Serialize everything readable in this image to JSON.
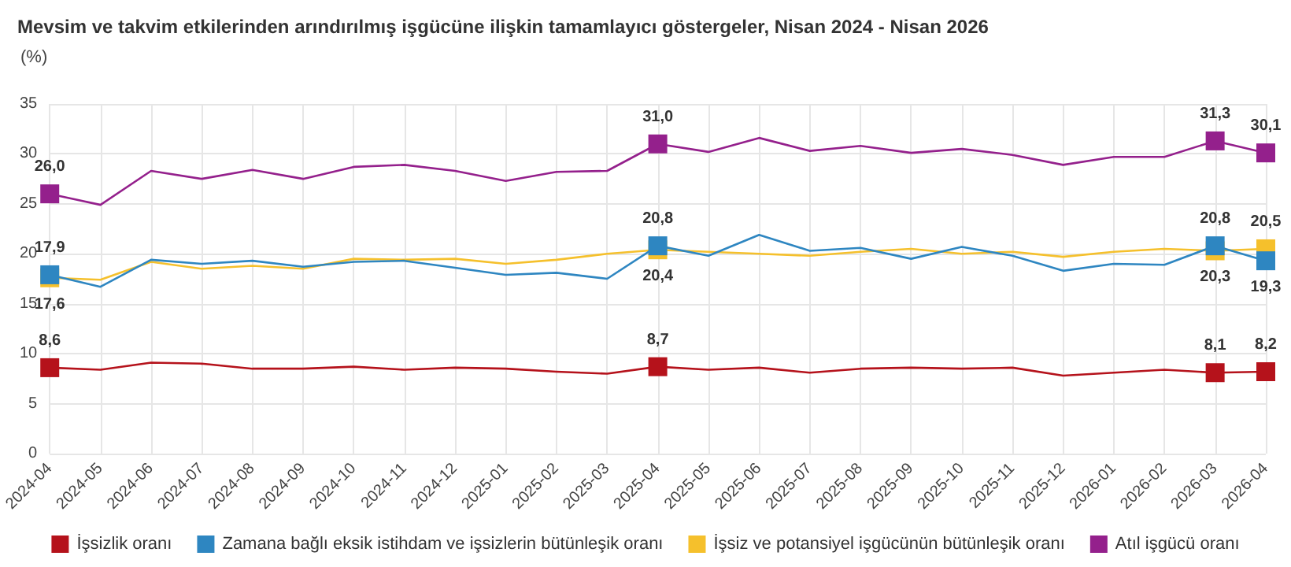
{
  "chart_data": {
    "type": "line",
    "title": "Mevsim ve takvim etkilerinden arındırılmış işgücüne ilişkin tamamlayıcı göstergeler, Nisan 2024 - Nisan 2026",
    "ylabel": "(%)",
    "categories": [
      "2024-04",
      "2024-05",
      "2024-06",
      "2024-07",
      "2024-08",
      "2024-09",
      "2024-10",
      "2024-11",
      "2024-12",
      "2025-01",
      "2025-02",
      "2025-03",
      "2025-04",
      "2025-05",
      "2025-06",
      "2025-07",
      "2025-08",
      "2025-09",
      "2025-10",
      "2025-11",
      "2025-12",
      "2026-01",
      "2026-02",
      "2026-03",
      "2026-04"
    ],
    "series": [
      {
        "name": "İşsizlik oranı",
        "color": "#b5121b",
        "values": [
          8.6,
          8.4,
          9.1,
          9.0,
          8.5,
          8.5,
          8.7,
          8.4,
          8.6,
          8.5,
          8.2,
          8.0,
          8.7,
          8.4,
          8.6,
          8.1,
          8.5,
          8.6,
          8.5,
          8.6,
          7.8,
          8.1,
          8.4,
          8.1,
          8.2
        ],
        "value_labels": [
          "8,6",
          null,
          null,
          null,
          null,
          null,
          null,
          null,
          null,
          null,
          null,
          null,
          "8,7",
          null,
          null,
          null,
          null,
          null,
          null,
          null,
          null,
          null,
          null,
          "8,1",
          "8,2"
        ]
      },
      {
        "name": "Zamana bağlı eksik istihdam ve işsizlerin bütünleşik oranı",
        "color": "#2e86c1",
        "values": [
          17.9,
          16.7,
          19.4,
          19.0,
          19.3,
          18.7,
          19.2,
          19.3,
          18.6,
          17.9,
          18.1,
          17.5,
          20.8,
          19.8,
          21.9,
          20.3,
          20.6,
          19.5,
          20.7,
          19.8,
          18.3,
          19.0,
          18.9,
          20.8,
          19.3
        ],
        "value_labels": [
          "17,9",
          null,
          null,
          null,
          null,
          null,
          null,
          null,
          null,
          null,
          null,
          null,
          "20,8",
          null,
          null,
          null,
          null,
          null,
          null,
          null,
          null,
          null,
          null,
          "20,8",
          "19,3"
        ]
      },
      {
        "name": "İşsiz ve potansiyel işgücünün bütünleşik oranı",
        "color": "#f5c02c",
        "values": [
          17.6,
          17.4,
          19.2,
          18.5,
          18.8,
          18.5,
          19.5,
          19.4,
          19.5,
          19.0,
          19.4,
          20.0,
          20.4,
          20.2,
          20.0,
          19.8,
          20.2,
          20.5,
          20.0,
          20.2,
          19.7,
          20.2,
          20.5,
          20.3,
          20.5
        ],
        "value_labels": [
          "17,6",
          null,
          null,
          null,
          null,
          null,
          null,
          null,
          null,
          null,
          null,
          null,
          "20,4",
          null,
          null,
          null,
          null,
          null,
          null,
          null,
          null,
          null,
          null,
          "20,3",
          "20,5"
        ]
      },
      {
        "name": "Atıl işgücü oranı",
        "color": "#94208c",
        "values": [
          26.0,
          24.9,
          28.3,
          27.5,
          28.4,
          27.5,
          28.7,
          28.9,
          28.3,
          27.3,
          28.2,
          28.3,
          31.0,
          30.2,
          31.6,
          30.3,
          30.8,
          30.1,
          30.5,
          29.9,
          28.9,
          29.7,
          29.7,
          31.3,
          30.1
        ],
        "value_labels": [
          "26,0",
          null,
          null,
          null,
          null,
          null,
          null,
          null,
          null,
          null,
          null,
          null,
          "31,0",
          null,
          null,
          null,
          null,
          null,
          null,
          null,
          null,
          null,
          null,
          "31,3",
          "30,1"
        ]
      }
    ],
    "ylim": [
      0,
      35
    ],
    "yticks": [
      0,
      5,
      10,
      15,
      20,
      25,
      30,
      35
    ],
    "grid": true,
    "legend": "bottom",
    "line_style": "solid"
  }
}
